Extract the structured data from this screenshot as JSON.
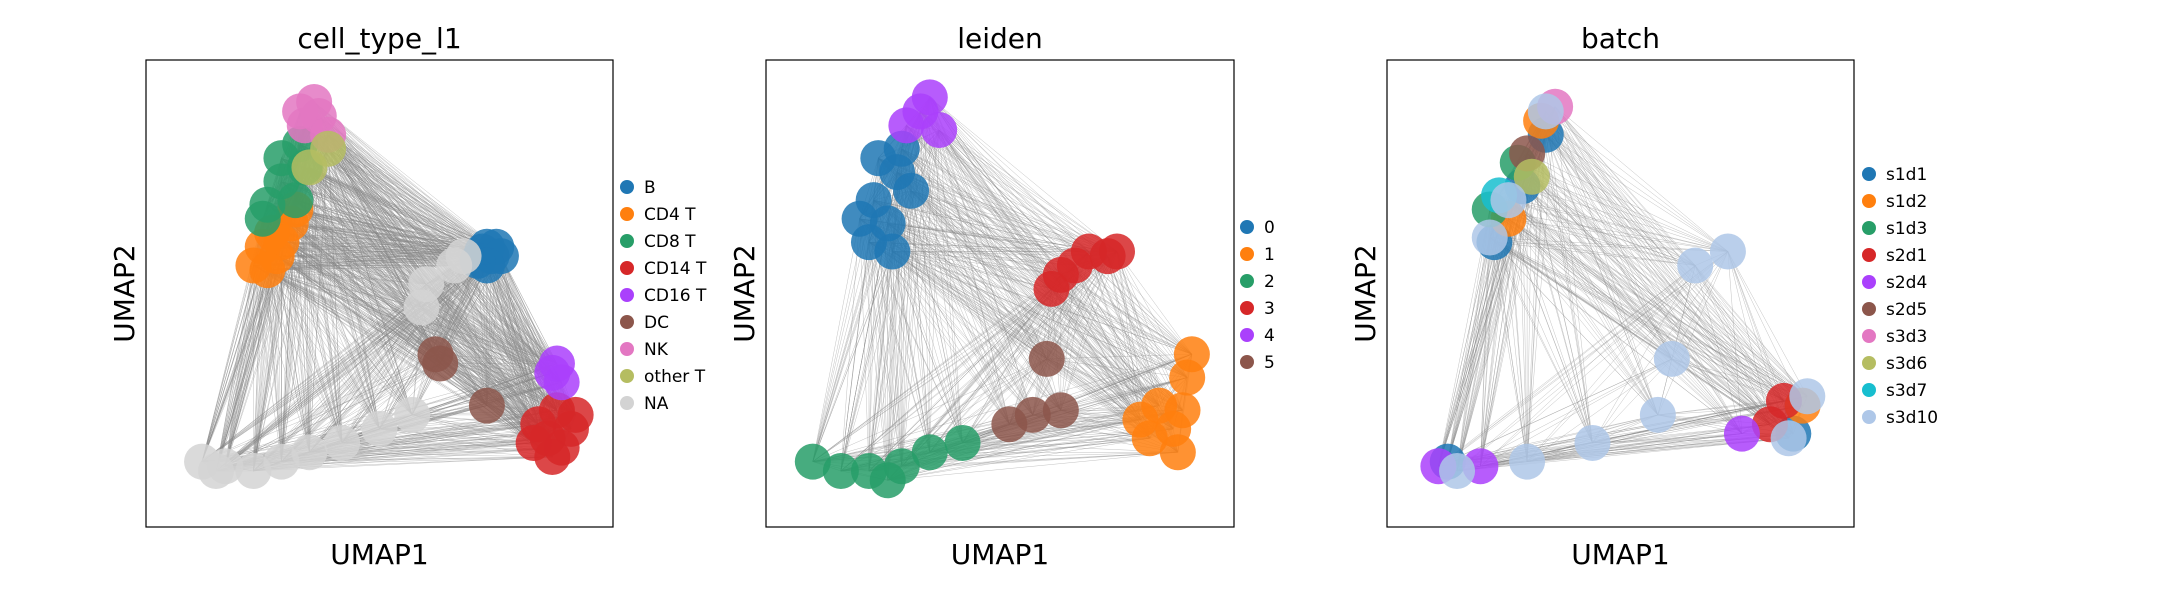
{
  "figure": {
    "background": "#ffffff"
  },
  "edge_color": "#888888",
  "chart_data": [
    {
      "type": "scatter",
      "title": "cell_type_l1",
      "xlabel": "UMAP1",
      "ylabel": "UMAP2",
      "xlim": [
        0,
        10
      ],
      "ylim": [
        0,
        10
      ],
      "grid": false,
      "legend_position": "right",
      "series": [
        {
          "name": "B",
          "color": "#1f77b4",
          "points": [
            [
              7.2,
              5.9
            ],
            [
              7.4,
              5.8
            ],
            [
              7.3,
              6.0
            ],
            [
              7.6,
              5.8
            ],
            [
              7.1,
              5.7
            ],
            [
              7.5,
              6.0
            ],
            [
              7.3,
              5.6
            ]
          ]
        },
        {
          "name": "CD4 T",
          "color": "#ff7f0e",
          "points": [
            [
              2.5,
              6.0
            ],
            [
              2.8,
              5.8
            ],
            [
              2.7,
              6.3
            ],
            [
              3.1,
              6.5
            ],
            [
              2.3,
              5.6
            ],
            [
              2.9,
              6.1
            ],
            [
              3.2,
              6.8
            ],
            [
              2.6,
              5.5
            ]
          ]
        },
        {
          "name": "CD8 T",
          "color": "#279e68",
          "points": [
            [
              2.9,
              7.4
            ],
            [
              3.2,
              7.0
            ],
            [
              2.6,
              6.9
            ],
            [
              3.4,
              7.7
            ],
            [
              2.9,
              7.9
            ],
            [
              3.3,
              8.2
            ],
            [
              2.5,
              6.6
            ]
          ]
        },
        {
          "name": "CD14 T",
          "color": "#d62728",
          "points": [
            [
              8.6,
              1.9
            ],
            [
              8.9,
              1.7
            ],
            [
              9.1,
              2.1
            ],
            [
              8.4,
              2.2
            ],
            [
              8.8,
              2.5
            ],
            [
              9.2,
              2.4
            ],
            [
              8.7,
              1.5
            ],
            [
              8.3,
              1.8
            ]
          ]
        },
        {
          "name": "CD16 T",
          "color": "#aa40fc",
          "points": [
            [
              8.7,
              3.3
            ],
            [
              8.9,
              3.1
            ],
            [
              8.8,
              3.5
            ]
          ]
        },
        {
          "name": "DC",
          "color": "#8c564b",
          "points": [
            [
              6.2,
              3.7
            ],
            [
              6.3,
              3.5
            ],
            [
              7.3,
              2.6
            ]
          ]
        },
        {
          "name": "NK",
          "color": "#e377c2",
          "points": [
            [
              3.4,
              8.6
            ],
            [
              3.7,
              8.8
            ],
            [
              3.6,
              9.1
            ],
            [
              3.9,
              8.4
            ],
            [
              3.3,
              8.9
            ]
          ]
        },
        {
          "name": "other T",
          "color": "#b5bd61",
          "points": [
            [
              3.9,
              8.1
            ],
            [
              3.5,
              7.7
            ]
          ]
        },
        {
          "name": "NA",
          "color": "#d3d3d3",
          "points": [
            [
              1.2,
              1.4
            ],
            [
              1.7,
              1.3
            ],
            [
              2.3,
              1.2
            ],
            [
              2.9,
              1.4
            ],
            [
              3.5,
              1.6
            ],
            [
              4.2,
              1.8
            ],
            [
              5.0,
              2.1
            ],
            [
              5.7,
              2.4
            ],
            [
              6.6,
              5.6
            ],
            [
              6.0,
              5.2
            ],
            [
              5.9,
              4.7
            ],
            [
              6.8,
              5.8
            ],
            [
              1.5,
              1.2
            ]
          ]
        }
      ]
    },
    {
      "type": "scatter",
      "title": "leiden",
      "xlabel": "UMAP1",
      "ylabel": "UMAP2",
      "xlim": [
        0,
        10
      ],
      "ylim": [
        0,
        10
      ],
      "grid": false,
      "legend_position": "right",
      "series": [
        {
          "name": "0",
          "color": "#1f77b4",
          "points": [
            [
              2.2,
              6.1
            ],
            [
              2.6,
              6.5
            ],
            [
              2.3,
              7.0
            ],
            [
              2.8,
              7.6
            ],
            [
              2.4,
              7.9
            ],
            [
              2.9,
              8.1
            ],
            [
              2.0,
              6.6
            ],
            [
              2.7,
              5.9
            ],
            [
              3.1,
              7.2
            ]
          ]
        },
        {
          "name": "1",
          "color": "#ff7f0e",
          "points": [
            [
              8.2,
              1.9
            ],
            [
              8.7,
              2.1
            ],
            [
              8.9,
              2.5
            ],
            [
              8.4,
              2.6
            ],
            [
              8.8,
              1.6
            ],
            [
              9.0,
              3.2
            ],
            [
              8.0,
              2.3
            ],
            [
              9.1,
              3.7
            ]
          ]
        },
        {
          "name": "2",
          "color": "#279e68",
          "points": [
            [
              1.0,
              1.4
            ],
            [
              1.6,
              1.2
            ],
            [
              2.2,
              1.2
            ],
            [
              2.9,
              1.3
            ],
            [
              3.5,
              1.6
            ],
            [
              4.2,
              1.8
            ],
            [
              2.6,
              1.0
            ]
          ]
        },
        {
          "name": "3",
          "color": "#d62728",
          "points": [
            [
              6.6,
              5.6
            ],
            [
              6.9,
              5.9
            ],
            [
              7.3,
              5.8
            ],
            [
              7.5,
              5.9
            ],
            [
              6.1,
              5.1
            ],
            [
              6.3,
              5.4
            ]
          ]
        },
        {
          "name": "4",
          "color": "#aa40fc",
          "points": [
            [
              3.0,
              8.6
            ],
            [
              3.3,
              8.9
            ],
            [
              3.5,
              9.2
            ],
            [
              3.7,
              8.5
            ]
          ]
        },
        {
          "name": "5",
          "color": "#8c564b",
          "points": [
            [
              6.0,
              3.6
            ],
            [
              5.7,
              2.4
            ],
            [
              6.3,
              2.5
            ],
            [
              5.2,
              2.2
            ]
          ]
        }
      ]
    },
    {
      "type": "scatter",
      "title": "batch",
      "xlabel": "UMAP1",
      "ylabel": "UMAP2",
      "xlim": [
        0,
        10
      ],
      "ylim": [
        0,
        10
      ],
      "grid": false,
      "legend_position": "right",
      "series": [
        {
          "name": "s1d1",
          "color": "#1f77b4",
          "points": [
            [
              2.3,
              6.1
            ],
            [
              2.9,
              7.3
            ],
            [
              1.3,
              1.4
            ],
            [
              8.7,
              2.0
            ],
            [
              3.4,
              8.4
            ]
          ]
        },
        {
          "name": "s1d2",
          "color": "#ff7f0e",
          "points": [
            [
              2.6,
              6.6
            ],
            [
              3.3,
              8.7
            ],
            [
              8.9,
              2.6
            ]
          ]
        },
        {
          "name": "s1d3",
          "color": "#279e68",
          "points": [
            [
              2.8,
              7.8
            ],
            [
              2.2,
              6.8
            ]
          ]
        },
        {
          "name": "s2d1",
          "color": "#d62728",
          "points": [
            [
              8.2,
              2.2
            ],
            [
              8.5,
              2.7
            ]
          ]
        },
        {
          "name": "s2d4",
          "color": "#aa40fc",
          "points": [
            [
              1.1,
              1.3
            ],
            [
              7.6,
              2.0
            ],
            [
              2.0,
              1.3
            ]
          ]
        },
        {
          "name": "s2d5",
          "color": "#8c564b",
          "points": [
            [
              3.0,
              8.0
            ]
          ]
        },
        {
          "name": "s3d3",
          "color": "#e377c2",
          "points": [
            [
              3.6,
              9.0
            ]
          ]
        },
        {
          "name": "s3d6",
          "color": "#b5bd61",
          "points": [
            [
              3.1,
              7.5
            ]
          ]
        },
        {
          "name": "s3d7",
          "color": "#17becf",
          "points": [
            [
              2.4,
              7.1
            ]
          ]
        },
        {
          "name": "s3d10",
          "color": "#aec7e8",
          "points": [
            [
              2.2,
              6.2
            ],
            [
              2.6,
              7.0
            ],
            [
              3.4,
              8.9
            ],
            [
              8.6,
              1.9
            ],
            [
              9.0,
              2.8
            ],
            [
              6.6,
              5.6
            ],
            [
              7.3,
              5.9
            ],
            [
              1.5,
              1.2
            ],
            [
              3.0,
              1.4
            ],
            [
              4.4,
              1.8
            ],
            [
              6.1,
              3.6
            ],
            [
              5.8,
              2.4
            ]
          ]
        }
      ]
    }
  ]
}
